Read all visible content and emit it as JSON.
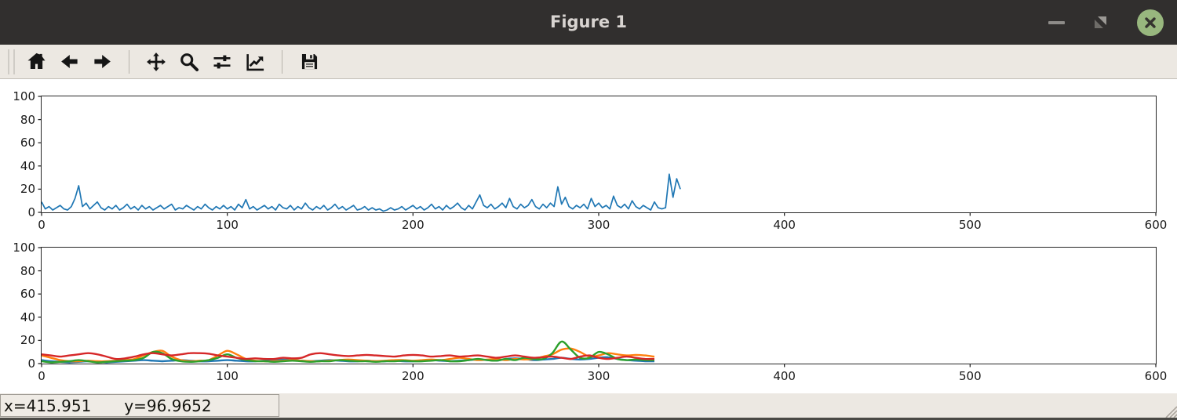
{
  "window": {
    "title": "Figure 1"
  },
  "titlebar": {
    "controls": [
      "minimize",
      "maximize",
      "close"
    ],
    "close_button_color": "#98b77e",
    "background_color": "#312f2e"
  },
  "toolbar": {
    "buttons": [
      "home",
      "back",
      "forward",
      "pan",
      "zoom-to-rect",
      "configure-subplots",
      "edit-parameters",
      "save"
    ]
  },
  "statusbar": {
    "x_label": "x=415.951",
    "y_label": "y=96.9652"
  },
  "chart_data": [
    {
      "type": "line",
      "title": "",
      "xlabel": "",
      "ylabel": "",
      "xlim": [
        0,
        600
      ],
      "ylim": [
        0,
        100
      ],
      "xticks": [
        0,
        100,
        200,
        300,
        400,
        500,
        600
      ],
      "yticks": [
        0,
        20,
        40,
        60,
        80,
        100
      ],
      "grid": false,
      "legend": null,
      "smooth": false,
      "linewidth": 1.7,
      "series": [
        {
          "name": "blue",
          "color": "#1f77b4",
          "x_start": 0,
          "x_step": 2,
          "values": [
            9,
            3,
            5,
            2,
            4,
            6,
            3,
            2,
            5,
            12,
            23,
            5,
            8,
            3,
            6,
            9,
            4,
            2,
            5,
            3,
            6,
            2,
            4,
            7,
            3,
            5,
            2,
            6,
            3,
            5,
            2,
            4,
            6,
            3,
            5,
            7,
            2,
            4,
            3,
            6,
            4,
            2,
            5,
            3,
            7,
            4,
            2,
            5,
            3,
            6,
            3,
            5,
            2,
            7,
            4,
            11,
            3,
            5,
            2,
            4,
            6,
            3,
            5,
            2,
            7,
            4,
            3,
            6,
            2,
            5,
            3,
            8,
            4,
            2,
            5,
            3,
            6,
            2,
            4,
            7,
            3,
            5,
            2,
            4,
            6,
            2,
            3,
            5,
            2,
            4,
            2,
            3,
            1,
            2,
            4,
            2,
            3,
            5,
            2,
            4,
            6,
            3,
            5,
            2,
            4,
            7,
            3,
            5,
            2,
            6,
            3,
            5,
            8,
            4,
            2,
            6,
            3,
            9,
            15,
            6,
            4,
            7,
            3,
            5,
            8,
            4,
            12,
            5,
            3,
            7,
            4,
            6,
            11,
            5,
            3,
            7,
            4,
            8,
            5,
            22,
            7,
            13,
            5,
            3,
            6,
            4,
            7,
            3,
            12,
            5,
            8,
            4,
            6,
            3,
            14,
            6,
            4,
            7,
            3,
            10,
            5,
            3,
            6,
            4,
            2,
            9,
            4,
            3,
            4,
            33,
            13,
            29,
            20
          ]
        }
      ]
    },
    {
      "type": "line",
      "title": "",
      "xlabel": "",
      "ylabel": "",
      "xlim": [
        0,
        600
      ],
      "ylim": [
        0,
        100
      ],
      "xticks": [
        0,
        100,
        200,
        300,
        400,
        500,
        600
      ],
      "yticks": [
        0,
        20,
        40,
        60,
        80,
        100
      ],
      "grid": false,
      "legend": null,
      "smooth": true,
      "linewidth": 2.4,
      "series": [
        {
          "name": "blue",
          "color": "#1f77b4",
          "x_start": 0,
          "x_step": 5,
          "values": [
            3,
            2,
            1.5,
            1,
            1.5,
            2,
            1.5,
            1,
            1.5,
            2,
            2.5,
            3,
            2.5,
            2,
            2.5,
            3,
            2.5,
            2,
            2,
            2.5,
            3,
            2.5,
            2,
            2,
            2.5,
            3,
            3.5,
            3,
            2.5,
            2,
            2.5,
            3,
            2.5,
            2,
            2,
            2.5,
            2,
            2,
            2.5,
            2,
            2,
            2.5,
            3,
            2.5,
            2,
            2.5,
            3,
            3.5,
            3,
            2.5,
            4,
            4.5,
            4,
            3,
            3.5,
            4,
            5,
            4,
            3.5,
            4,
            5,
            5.5,
            4,
            3,
            2.5,
            2,
            2
          ]
        },
        {
          "name": "orange",
          "color": "#ff7f0e",
          "x_start": 0,
          "x_step": 5,
          "values": [
            7,
            5,
            3,
            2,
            2,
            2.5,
            2,
            2,
            2.5,
            3,
            4,
            7,
            10,
            11,
            6,
            3,
            2,
            2.5,
            3,
            7,
            11,
            8,
            4,
            2.5,
            2,
            2,
            2.5,
            3,
            2.5,
            2,
            2,
            2.5,
            3,
            3.5,
            3,
            2.5,
            2,
            2.5,
            3,
            3,
            2.5,
            3,
            3.5,
            3,
            4,
            5,
            4,
            3,
            3.5,
            4,
            3,
            4,
            3.5,
            4,
            6,
            8,
            12,
            13,
            10,
            6,
            7,
            9,
            8,
            7,
            7.5,
            7,
            6
          ]
        },
        {
          "name": "green",
          "color": "#2ca02c",
          "x_start": 0,
          "x_step": 5,
          "values": [
            2,
            1,
            1.5,
            2,
            3,
            2,
            1,
            1.5,
            2,
            2.5,
            3,
            5,
            10,
            9,
            4,
            2,
            1.5,
            2,
            3,
            5,
            8,
            5,
            3,
            2,
            2,
            1.5,
            2,
            2.5,
            2,
            1.5,
            2,
            2,
            3,
            2.5,
            2,
            2,
            1.5,
            2,
            2,
            2.5,
            2,
            2,
            2.5,
            3,
            2,
            2,
            3,
            4,
            3,
            2.5,
            4,
            3,
            5,
            4,
            4,
            9,
            19,
            12,
            5,
            5,
            10,
            8,
            4,
            3,
            3.5,
            3,
            3
          ]
        },
        {
          "name": "red",
          "color": "#d62728",
          "x_start": 0,
          "x_step": 5,
          "values": [
            8,
            7,
            6,
            7,
            8,
            9,
            8,
            6,
            4,
            4.5,
            6,
            8,
            9,
            8,
            7,
            8,
            9,
            9,
            8.5,
            7,
            6,
            5,
            4,
            4.5,
            4,
            4,
            5,
            4.5,
            5,
            8,
            9,
            8,
            7,
            6.5,
            7,
            7.5,
            7,
            6.5,
            6,
            7,
            7.5,
            7,
            6,
            6.5,
            7,
            6,
            6.5,
            7,
            6,
            5,
            6,
            7,
            6,
            5,
            5.5,
            6,
            5,
            4,
            6,
            7,
            5,
            4,
            5,
            6,
            5,
            4,
            4
          ]
        }
      ]
    }
  ]
}
